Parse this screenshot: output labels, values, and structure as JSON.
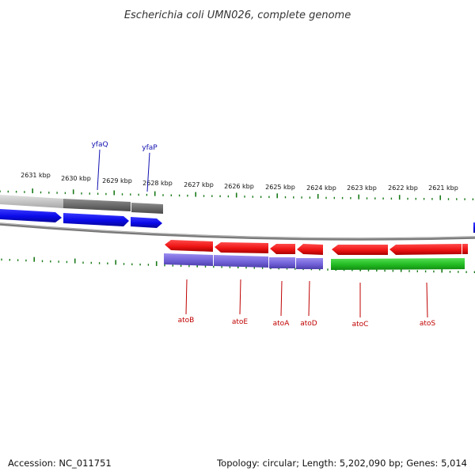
{
  "title": "Escherichia coli UMN026, complete genome",
  "footer": {
    "accession": "Accession: NC_011751",
    "stats": "Topology: circular; Length: 5,202,090 bp; Genes: 5,014"
  },
  "colors": {
    "forward_gene": "#1010e0",
    "reverse_gene": "#e81414",
    "forward_label": "#1010b0",
    "reverse_label": "#c00000",
    "tick": "#1a7a1a",
    "operon_purple": "#7766d8",
    "operon_green": "#22bb22",
    "forward_span_light": "#c8c8c8",
    "forward_span_dark": "#6e6e6e",
    "backbone": "#888888"
  },
  "scale": {
    "unit": "kbp",
    "labels": [
      "2631 kbp",
      "2630 kbp",
      "2629 kbp",
      "2628 kbp",
      "2627 kbp",
      "2626 kbp",
      "2625 kbp",
      "2624 kbp",
      "2623 kbp",
      "2622 kbp",
      "2621 kbp"
    ]
  },
  "forward_genes": [
    {
      "name": "yfaQ"
    },
    {
      "name": "yfaP"
    }
  ],
  "reverse_genes": [
    {
      "name": "atoB"
    },
    {
      "name": "atoE"
    },
    {
      "name": "atoA"
    },
    {
      "name": "atoD"
    },
    {
      "name": "atoC"
    },
    {
      "name": "atoS"
    }
  ]
}
